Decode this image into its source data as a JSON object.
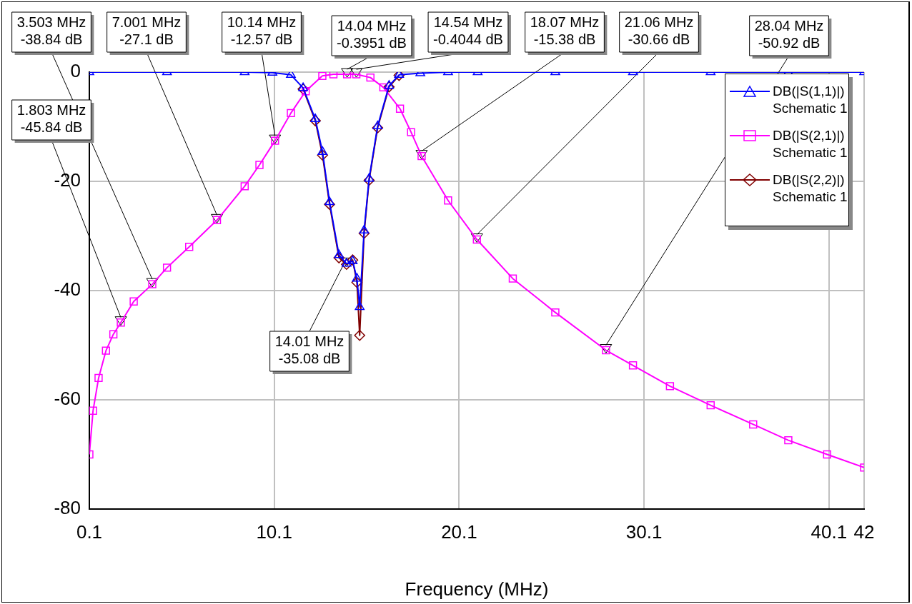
{
  "chart_data": {
    "type": "line",
    "xlabel": "Frequency (MHz)",
    "xlim": [
      0.1,
      42
    ],
    "xticks": [
      0.1,
      10.1,
      20.1,
      30.1,
      40.1,
      42
    ],
    "ylim": [
      -80,
      0
    ],
    "yticks": [
      -80,
      -60,
      -40,
      -20,
      0
    ],
    "grid": true,
    "legend": "top right",
    "line_style": "solid",
    "series": [
      {
        "name": "DB(|S(1,1)|)\nSchematic 1",
        "color": "#0000ff",
        "marker": "triangle",
        "x": [
          0.1,
          4.3,
          8.5,
          10,
          11,
          11.66,
          12.32,
          12.71,
          13.09,
          13.6,
          14.01,
          14.34,
          14.57,
          14.72,
          14.96,
          15.23,
          15.69,
          16.31,
          16.85,
          18,
          19.5,
          21.1,
          25.3,
          29.5,
          33.7,
          37.9,
          42
        ],
        "values": [
          0,
          0,
          0,
          -0.1,
          -0.5,
          -2.9,
          -8.6,
          -14.6,
          -23.8,
          -33.5,
          -35.08,
          -34.6,
          -37.8,
          -43,
          -29,
          -19.5,
          -9.9,
          -2.5,
          -0.5,
          -0.2,
          0,
          0,
          0,
          0,
          0,
          0,
          0
        ]
      },
      {
        "name": "DB(|S(2,1)|)\nSchematic 1",
        "color": "#ff00ff",
        "marker": "square",
        "x": [
          0.1,
          0.3,
          0.6,
          1,
          1.4,
          1.803,
          2.5,
          3.503,
          4.3,
          5.5,
          7.001,
          8.5,
          9.3,
          10.14,
          11,
          11.8,
          12.7,
          13.3,
          14.04,
          14.54,
          15.3,
          16,
          16.9,
          17.5,
          18.07,
          19.5,
          21.06,
          23,
          25.3,
          28.04,
          29.5,
          31.5,
          33.7,
          36,
          37.9,
          40,
          42
        ],
        "values": [
          -70,
          -62,
          -56,
          -51,
          -48,
          -45.84,
          -42,
          -38.84,
          -35.8,
          -32,
          -27.1,
          -20.9,
          -17,
          -12.57,
          -7.5,
          -3.5,
          -0.7,
          -0.4,
          -0.3951,
          -0.4044,
          -1,
          -2.8,
          -6.7,
          -11,
          -15.38,
          -23.5,
          -30.66,
          -37.8,
          -44,
          -50.92,
          -53.7,
          -57.5,
          -61,
          -64.5,
          -67.4,
          -70,
          -72.4
        ]
      },
      {
        "name": "DB(|S(2,2)|)\nSchematic 1",
        "color": "#800000",
        "marker": "diamond",
        "x": [
          11.66,
          12.32,
          12.71,
          13.09,
          13.6,
          14.01,
          14.34,
          14.57,
          14.72,
          14.96,
          15.23,
          15.69,
          16.31,
          16.85
        ],
        "values": [
          -3.1,
          -8.9,
          -15.2,
          -24.2,
          -34,
          -35.2,
          -34.4,
          -38.5,
          -48.2,
          -29.5,
          -19.8,
          -10.2,
          -2.7,
          -0.6
        ]
      }
    ],
    "annotations": [
      {
        "text": "1.803 MHz\n-45.84 dB",
        "x": 1.803,
        "y": -45.84
      },
      {
        "text": "3.503 MHz\n-38.84 dB",
        "x": 3.503,
        "y": -38.84
      },
      {
        "text": "7.001 MHz\n-27.1 dB",
        "x": 7.001,
        "y": -27.1
      },
      {
        "text": "10.14 MHz\n-12.57 dB",
        "x": 10.14,
        "y": -12.57
      },
      {
        "text": "14.04 MHz\n-0.3951 dB",
        "x": 14.04,
        "y": -0.3951
      },
      {
        "text": "14.54 MHz\n-0.4044 dB",
        "x": 14.54,
        "y": -0.4044
      },
      {
        "text": "18.07 MHz\n-15.38 dB",
        "x": 18.07,
        "y": -15.38
      },
      {
        "text": "21.06 MHz\n-30.66 dB",
        "x": 21.06,
        "y": -30.66
      },
      {
        "text": "28.04 MHz\n-50.92 dB",
        "x": 28.04,
        "y": -50.92
      },
      {
        "text": "14.01 MHz\n-35.08 dB",
        "x": 14.01,
        "y": -35.08
      }
    ]
  }
}
